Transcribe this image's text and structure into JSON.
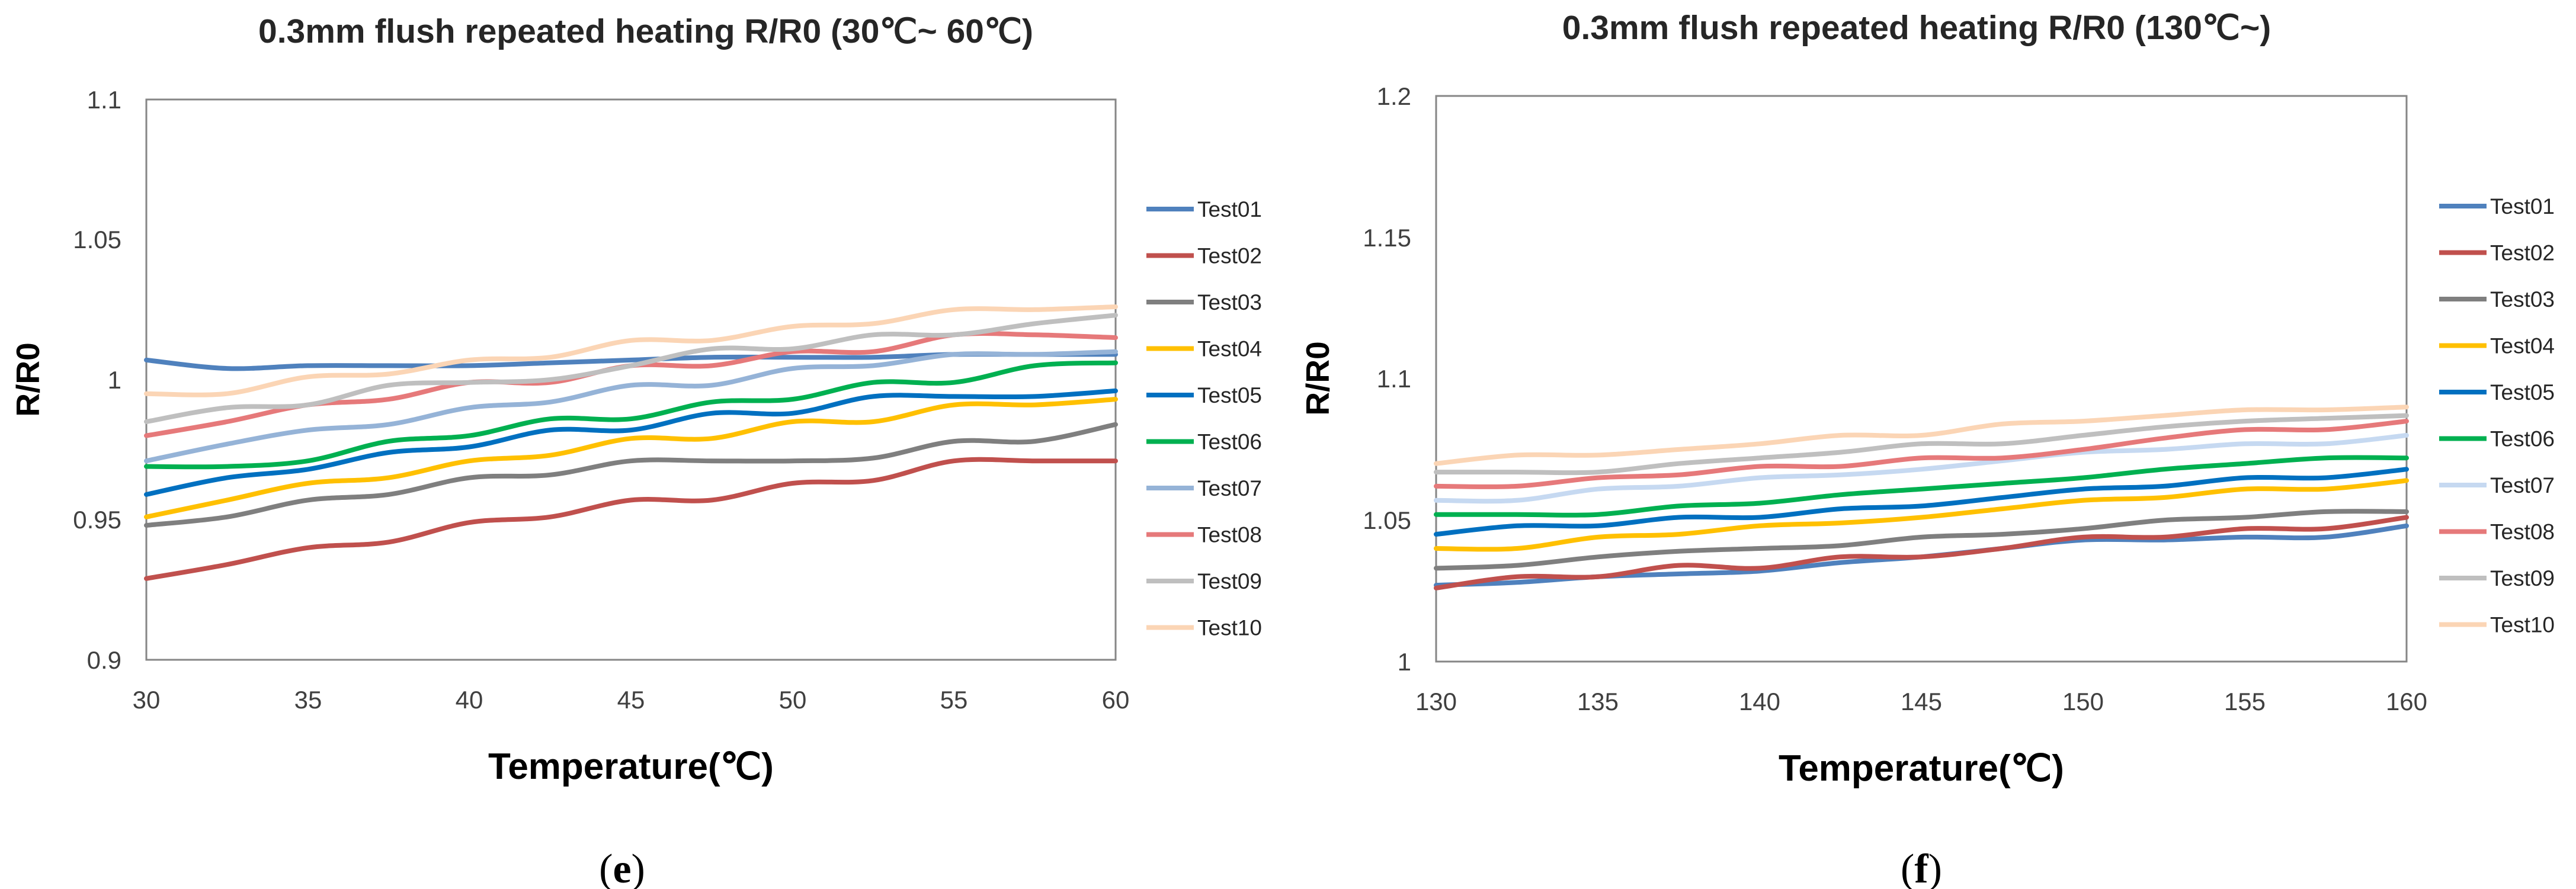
{
  "chart_data": [
    {
      "type": "line",
      "title": "0.3mm flush repeated heating R/R0 (30℃~ 60℃)",
      "xlabel": "Temperature(℃)",
      "ylabel": "R/R0",
      "caption_open": "(",
      "caption_letter": "e",
      "caption_close": ")",
      "xlim": [
        30,
        60
      ],
      "ylim": [
        0.9,
        1.1
      ],
      "xticks": [
        "30",
        "35",
        "40",
        "45",
        "50",
        "55",
        "60"
      ],
      "yticks": [
        "0.9",
        "0.95",
        "1",
        "1.05",
        "1.1"
      ],
      "legend_position": "right",
      "x": [
        30,
        32.5,
        35,
        37.5,
        40,
        42.5,
        45,
        47.5,
        50,
        52.5,
        55,
        57.5,
        60
      ],
      "series": [
        {
          "name": "Test01",
          "color": "#4F81BD",
          "values": [
            1.007,
            1.004,
            1.005,
            1.005,
            1.005,
            1.006,
            1.007,
            1.008,
            1.008,
            1.008,
            1.009,
            1.009,
            1.009
          ]
        },
        {
          "name": "Test02",
          "color": "#C0504D",
          "values": [
            0.929,
            0.934,
            0.94,
            0.942,
            0.949,
            0.951,
            0.957,
            0.957,
            0.963,
            0.964,
            0.971,
            0.971,
            0.971
          ]
        },
        {
          "name": "Test03",
          "color": "#7F7F7F",
          "values": [
            0.948,
            0.951,
            0.957,
            0.959,
            0.965,
            0.966,
            0.971,
            0.971,
            0.971,
            0.972,
            0.978,
            0.978,
            0.984
          ]
        },
        {
          "name": "Test04",
          "color": "#FFC000",
          "values": [
            0.951,
            0.957,
            0.963,
            0.965,
            0.971,
            0.973,
            0.979,
            0.979,
            0.985,
            0.985,
            0.991,
            0.991,
            0.993
          ]
        },
        {
          "name": "Test05",
          "color": "#0070C0",
          "values": [
            0.959,
            0.965,
            0.968,
            0.974,
            0.976,
            0.982,
            0.982,
            0.988,
            0.988,
            0.994,
            0.994,
            0.994,
            0.996
          ]
        },
        {
          "name": "Test06",
          "color": "#00B050",
          "values": [
            0.969,
            0.969,
            0.971,
            0.978,
            0.98,
            0.986,
            0.986,
            0.992,
            0.993,
            0.999,
            0.999,
            1.005,
            1.006
          ]
        },
        {
          "name": "Test07",
          "color": "#95B3D7",
          "values": [
            0.971,
            0.977,
            0.982,
            0.984,
            0.99,
            0.992,
            0.998,
            0.998,
            1.004,
            1.005,
            1.009,
            1.009,
            1.01
          ]
        },
        {
          "name": "Test08",
          "color": "#E6797A",
          "values": [
            0.98,
            0.985,
            0.991,
            0.993,
            0.999,
            0.999,
            1.005,
            1.005,
            1.01,
            1.01,
            1.016,
            1.016,
            1.015
          ]
        },
        {
          "name": "Test09",
          "color": "#BFBFBF",
          "values": [
            0.985,
            0.99,
            0.991,
            0.998,
            0.999,
            1.0,
            1.005,
            1.011,
            1.011,
            1.016,
            1.016,
            1.02,
            1.023
          ]
        },
        {
          "name": "Test10",
          "color": "#FBD5B5",
          "values": [
            0.995,
            0.995,
            1.001,
            1.002,
            1.007,
            1.008,
            1.014,
            1.014,
            1.019,
            1.02,
            1.025,
            1.025,
            1.026
          ]
        }
      ]
    },
    {
      "type": "line",
      "title": "0.3mm flush repeated heating R/R0 (130℃~)",
      "xlabel": "Temperature(℃)",
      "ylabel": "R/R0",
      "caption_open": "(",
      "caption_letter": "f",
      "caption_close": ")",
      "xlim": [
        130,
        160
      ],
      "ylim": [
        1,
        1.2
      ],
      "xticks": [
        "130",
        "135",
        "140",
        "145",
        "150",
        "155",
        "160"
      ],
      "yticks": [
        "1",
        "1.05",
        "1.1",
        "1.15",
        "1.2"
      ],
      "legend_position": "right",
      "x": [
        130,
        132.5,
        135,
        137.5,
        140,
        142.5,
        145,
        147.5,
        150,
        152.5,
        155,
        157.5,
        160
      ],
      "series": [
        {
          "name": "Test01",
          "color": "#4F81BD",
          "values": [
            1.027,
            1.028,
            1.03,
            1.031,
            1.032,
            1.035,
            1.037,
            1.04,
            1.043,
            1.043,
            1.044,
            1.044,
            1.048
          ]
        },
        {
          "name": "Test02",
          "color": "#C0504D",
          "values": [
            1.026,
            1.03,
            1.03,
            1.034,
            1.033,
            1.037,
            1.037,
            1.04,
            1.044,
            1.044,
            1.047,
            1.047,
            1.051
          ]
        },
        {
          "name": "Test03",
          "color": "#7F7F7F",
          "values": [
            1.033,
            1.034,
            1.037,
            1.039,
            1.04,
            1.041,
            1.044,
            1.045,
            1.047,
            1.05,
            1.051,
            1.053,
            1.053
          ]
        },
        {
          "name": "Test04",
          "color": "#FFC000",
          "values": [
            1.04,
            1.04,
            1.044,
            1.045,
            1.048,
            1.049,
            1.051,
            1.054,
            1.057,
            1.058,
            1.061,
            1.061,
            1.064
          ]
        },
        {
          "name": "Test05",
          "color": "#0070C0",
          "values": [
            1.045,
            1.048,
            1.048,
            1.051,
            1.051,
            1.054,
            1.055,
            1.058,
            1.061,
            1.062,
            1.065,
            1.065,
            1.068
          ]
        },
        {
          "name": "Test06",
          "color": "#00B050",
          "values": [
            1.052,
            1.052,
            1.052,
            1.055,
            1.056,
            1.059,
            1.061,
            1.063,
            1.065,
            1.068,
            1.07,
            1.072,
            1.072
          ]
        },
        {
          "name": "Test07",
          "color": "#C6D9F1",
          "values": [
            1.057,
            1.057,
            1.061,
            1.062,
            1.065,
            1.066,
            1.068,
            1.071,
            1.074,
            1.075,
            1.077,
            1.077,
            1.08
          ]
        },
        {
          "name": "Test08",
          "color": "#E6797A",
          "values": [
            1.062,
            1.062,
            1.065,
            1.066,
            1.069,
            1.069,
            1.072,
            1.072,
            1.075,
            1.079,
            1.082,
            1.082,
            1.085
          ]
        },
        {
          "name": "Test09",
          "color": "#BFBFBF",
          "values": [
            1.067,
            1.067,
            1.067,
            1.07,
            1.072,
            1.074,
            1.077,
            1.077,
            1.08,
            1.083,
            1.085,
            1.086,
            1.087
          ]
        },
        {
          "name": "Test10",
          "color": "#FBD5B5",
          "values": [
            1.07,
            1.073,
            1.073,
            1.075,
            1.077,
            1.08,
            1.08,
            1.084,
            1.085,
            1.087,
            1.089,
            1.089,
            1.09
          ]
        }
      ]
    }
  ]
}
